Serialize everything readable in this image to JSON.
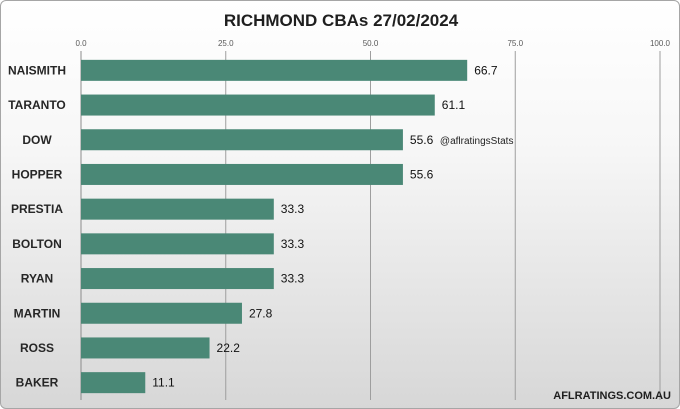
{
  "chart_data": {
    "type": "bar",
    "orientation": "horizontal",
    "title": "RICHMOND CBAs 27/02/2024",
    "categories": [
      "NAISMITH",
      "TARANTO",
      "DOW",
      "HOPPER",
      "PRESTIA",
      "BOLTON",
      "RYAN",
      "MARTIN",
      "ROSS",
      "BAKER"
    ],
    "values": [
      66.7,
      61.1,
      55.6,
      55.6,
      33.3,
      33.3,
      33.3,
      27.8,
      22.2,
      11.1
    ],
    "value_labels": [
      "66.7",
      "61.1",
      "55.6",
      "55.6",
      "33.3",
      "33.3",
      "33.3",
      "27.8",
      "22.2",
      "11.1"
    ],
    "xlim": [
      0,
      100
    ],
    "x_ticks": [
      "0.0",
      "25.0",
      "50.0",
      "75.0",
      "100.0"
    ],
    "x_axis_position": "top",
    "grid": true,
    "legend": "none",
    "bar_color": "#4a8876",
    "annotation": "@aflratingsStats",
    "footer": "AFLRATINGS.COM.AU"
  }
}
